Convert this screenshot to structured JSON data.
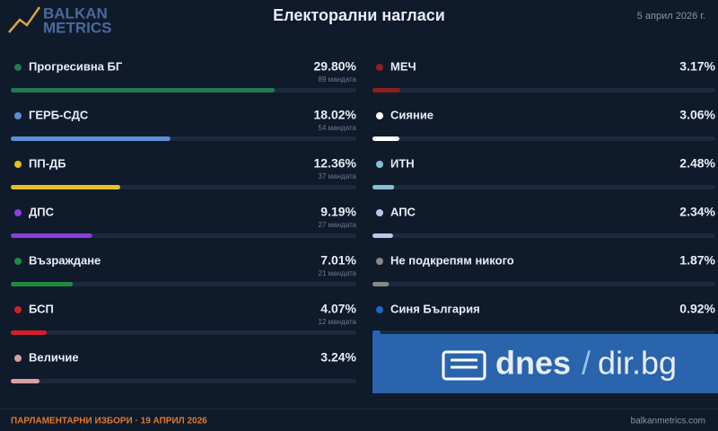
{
  "logo": {
    "line1": "BALKAN",
    "line2": "METRICS"
  },
  "date": "5 април 2026 г.",
  "footer": {
    "left": "ПАРЛАМЕНТАРНИ ИЗБОРИ · 19 АПРИЛ 2026",
    "right": "balkanmetrics.com"
  },
  "watermark": {
    "left": "dnes",
    "sep": "/",
    "right": "dir.bg"
  },
  "chart_data": {
    "type": "hbar",
    "title": "Електорални нагласи",
    "categories": [
      "Прогресивна БГ",
      "ГЕРБ-СДС",
      "ПП-ДБ",
      "ДПС",
      "Възраждане",
      "БСП",
      "Величие",
      "МЕЧ",
      "Сияние",
      "ИТН",
      "АПС",
      "Не подкрепям никого",
      "Синя България"
    ],
    "values": [
      29.8,
      18.02,
      12.36,
      9.19,
      7.01,
      4.07,
      3.24,
      3.17,
      3.06,
      2.48,
      2.34,
      1.87,
      0.92
    ],
    "value_labels": [
      "29.80%",
      "18.02%",
      "12.36%",
      "9.19%",
      "7.01%",
      "4.07%",
      "3.24%",
      "3.17%",
      "3.06%",
      "2.48%",
      "2.34%",
      "1.87%",
      "0.92%"
    ],
    "mandate_labels": [
      "89 мандата",
      "54 мандата",
      "37 мандата",
      "27 мандата",
      "21 мандата",
      "12 мандата",
      null,
      null,
      null,
      null,
      null,
      null,
      null
    ],
    "colors": [
      "#1f7a4d",
      "#5b8fd6",
      "#e6c21a",
      "#8a3ee0",
      "#1f8a3f",
      "#d0202a",
      "#d9a0a0",
      "#8b2020",
      "#ffffff",
      "#7cc4d6",
      "#b8c8ec",
      "#888888",
      "#2166c4"
    ],
    "xlim": [
      0,
      39
    ]
  }
}
